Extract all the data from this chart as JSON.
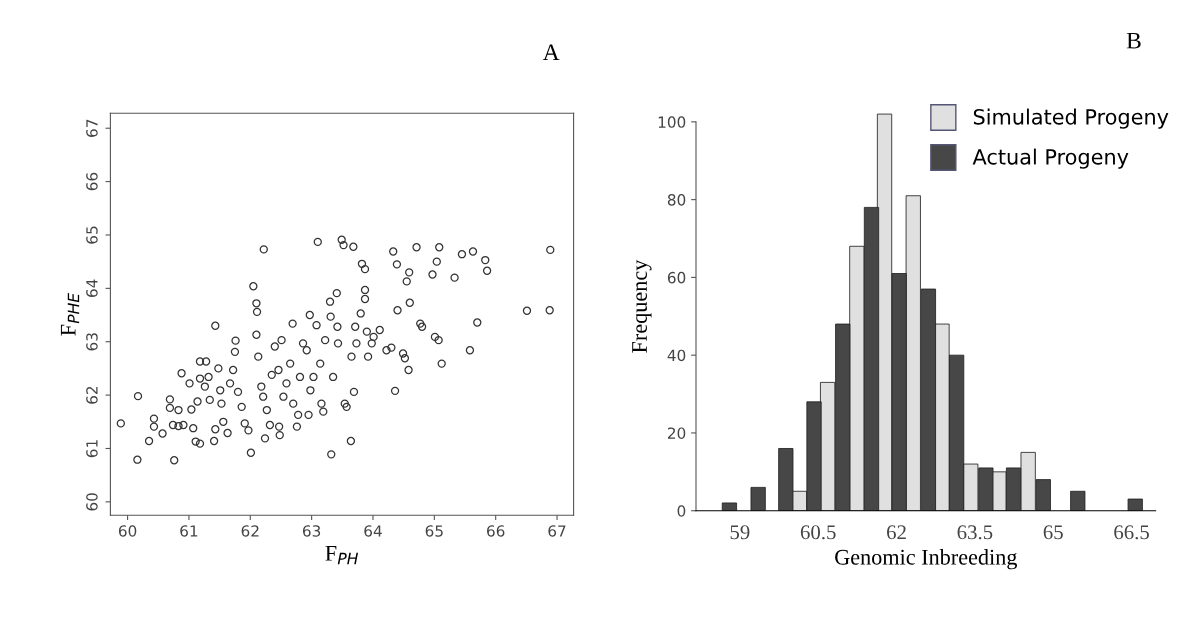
{
  "chart_data": [
    {
      "type": "scatter",
      "xlabel": "F$_{PH}$",
      "ylabel": "F$_{PHE}$",
      "annotations": [
        "A"
      ],
      "marker": "circle",
      "color": "#333333",
      "grid": false,
      "legend": false,
      "xlim": [
        59.72,
        67.27
      ],
      "ylim": [
        59.75,
        67.28
      ],
      "xticks": [
        60,
        61,
        62,
        63,
        64,
        65,
        66,
        67
      ],
      "yticks": [
        60,
        61,
        62,
        63,
        64,
        65,
        66,
        67
      ],
      "x": [
        59.89,
        60.17,
        60.16,
        60.76,
        60.35,
        60.43,
        60.43,
        60.57,
        60.69,
        60.69,
        60.83,
        60.74,
        60.83,
        60.91,
        60.88,
        61.01,
        61.07,
        61.11,
        61.18,
        61.04,
        61.14,
        61.18,
        61.28,
        61.18,
        61.32,
        61.26,
        61.34,
        61.41,
        61.43,
        61.43,
        61.48,
        61.51,
        61.53,
        61.56,
        61.63,
        61.67,
        61.72,
        61.76,
        61.75,
        61.8,
        61.86,
        61.91,
        61.97,
        62.01,
        62.05,
        62.1,
        62.11,
        62.1,
        62.13,
        62.18,
        62.21,
        62.24,
        62.22,
        62.27,
        62.32,
        62.35,
        62.4,
        62.46,
        62.48,
        62.47,
        62.51,
        62.54,
        62.59,
        62.65,
        62.69,
        62.7,
        62.76,
        62.78,
        62.81,
        62.86,
        62.92,
        62.95,
        62.97,
        62.98,
        63.03,
        63.08,
        63.1,
        63.14,
        63.16,
        63.19,
        63.22,
        63.3,
        63.31,
        63.32,
        63.35,
        63.41,
        63.42,
        63.43,
        63.49,
        63.52,
        63.54,
        63.57,
        63.64,
        63.65,
        63.68,
        63.69,
        63.71,
        63.73,
        63.8,
        63.82,
        63.87,
        63.87,
        63.87,
        63.9,
        63.92,
        63.98,
        64.01,
        64.11,
        64.22,
        64.3,
        64.33,
        64.36,
        64.39,
        64.4,
        64.49,
        64.52,
        64.55,
        64.58,
        64.59,
        64.6,
        64.71,
        64.77,
        64.8,
        64.97,
        65.01,
        65.04,
        65.07,
        65.08,
        65.12,
        65.33,
        65.45,
        65.58,
        65.63,
        65.7,
        65.83,
        65.86,
        66.51,
        66.88,
        66.89
      ],
      "values": [
        61.47,
        61.98,
        60.79,
        60.78,
        61.14,
        61.56,
        61.41,
        61.28,
        61.92,
        61.76,
        61.72,
        61.44,
        61.42,
        61.44,
        62.41,
        62.22,
        61.38,
        61.13,
        61.09,
        61.73,
        61.88,
        62.63,
        62.63,
        62.31,
        62.34,
        62.16,
        61.91,
        61.14,
        61.36,
        63.3,
        62.5,
        62.09,
        61.84,
        61.5,
        61.29,
        62.22,
        62.47,
        63.02,
        62.81,
        62.06,
        61.78,
        61.47,
        61.34,
        60.92,
        64.04,
        63.72,
        63.56,
        63.13,
        62.72,
        62.16,
        61.97,
        61.19,
        64.73,
        61.72,
        61.44,
        62.38,
        62.91,
        62.47,
        61.25,
        61.41,
        63.03,
        61.97,
        62.22,
        62.59,
        63.34,
        61.84,
        61.41,
        61.63,
        62.34,
        62.97,
        62.84,
        61.63,
        63.5,
        62.09,
        62.34,
        63.31,
        64.87,
        62.59,
        61.84,
        61.69,
        63.03,
        63.75,
        63.47,
        60.89,
        62.34,
        63.91,
        63.28,
        62.97,
        64.91,
        64.81,
        61.84,
        61.78,
        61.14,
        62.72,
        64.78,
        62.06,
        63.28,
        62.97,
        63.53,
        64.46,
        64.36,
        63.97,
        63.8,
        63.19,
        62.72,
        62.97,
        63.09,
        63.22,
        62.84,
        62.89,
        64.69,
        62.08,
        64.45,
        63.59,
        62.78,
        62.69,
        64.13,
        62.47,
        64.3,
        63.73,
        64.77,
        63.34,
        63.28,
        64.26,
        63.09,
        64.5,
        63.03,
        64.77,
        62.59,
        64.2,
        64.64,
        62.84,
        64.69,
        63.36,
        64.53,
        64.33,
        63.58,
        63.59,
        64.72
      ]
    },
    {
      "type": "bar",
      "xlabel": "Genomic Inbreeding",
      "ylabel": "Frequency",
      "annotations": [
        "B"
      ],
      "grid": false,
      "legend": "top right",
      "xlim": [
        58.16,
        66.96
      ],
      "ylim": [
        0,
        105
      ],
      "xticks": [
        59,
        60.5,
        62,
        63.5,
        65,
        66.5
      ],
      "yticks": [
        0,
        20,
        40,
        60,
        80,
        100
      ],
      "series": [
        {
          "name": "Simulated Progeny",
          "color": "#e0e0e0",
          "x": [
            60.14,
            60.68,
            61.24,
            61.77,
            62.32,
            62.87,
            63.42,
            63.96,
            64.52
          ],
          "values": [
            5,
            33,
            68,
            102,
            81,
            48,
            12,
            10,
            15
          ]
        },
        {
          "name": "Actual Progeny",
          "color": "#474747",
          "x": [
            58.8,
            59.35,
            59.88,
            60.42,
            60.97,
            61.52,
            62.05,
            62.61,
            63.15,
            63.71,
            64.24,
            64.81,
            65.47,
            66.57
          ],
          "values": [
            2,
            6,
            16,
            28,
            48,
            78,
            61,
            57,
            40,
            11,
            11,
            8,
            5,
            3
          ]
        }
      ]
    }
  ]
}
